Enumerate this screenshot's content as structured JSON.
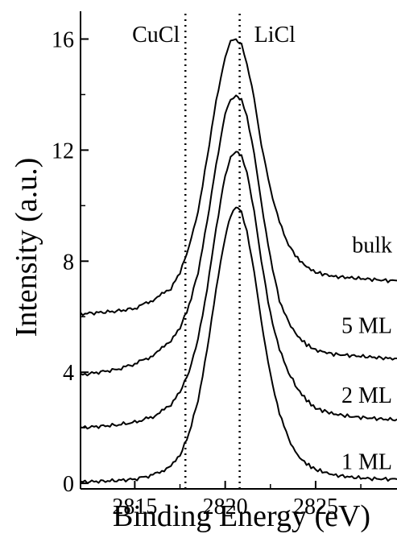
{
  "chart_data": {
    "type": "line",
    "xlabel": "Binding Energy (eV)",
    "ylabel": "Intensity (a.u.)",
    "xlim": [
      2812,
      2829.5
    ],
    "ylim": [
      -0.2,
      17
    ],
    "x_ticks": [
      2815,
      2820,
      2825
    ],
    "y_ticks": [
      0,
      4,
      8,
      12,
      16
    ],
    "grid": false,
    "reference_lines": [
      {
        "label": "CuCl",
        "x": 2817.8
      },
      {
        "label": "LiCl",
        "x": 2820.8
      }
    ],
    "series": [
      {
        "name": "1 ML",
        "label_y": 0.8,
        "x": [
          2812,
          2813,
          2814,
          2815,
          2816,
          2817,
          2817.5,
          2818,
          2818.5,
          2819,
          2819.5,
          2820,
          2820.3,
          2820.6,
          2820.9,
          2821.2,
          2821.6,
          2822,
          2822.5,
          2823,
          2823.5,
          2824,
          2824.5,
          2825,
          2826,
          2827,
          2828,
          2829,
          2829.5
        ],
        "y": [
          0.05,
          0.07,
          0.1,
          0.15,
          0.3,
          0.6,
          1.0,
          1.8,
          3.0,
          4.8,
          7.0,
          8.9,
          9.6,
          10.0,
          9.8,
          9.1,
          7.6,
          5.8,
          3.9,
          2.5,
          1.6,
          1.0,
          0.7,
          0.5,
          0.3,
          0.22,
          0.17,
          0.15,
          0.15
        ]
      },
      {
        "name": "2 ML",
        "label_y": 3.2,
        "x": [
          2812,
          2813,
          2814,
          2815,
          2816,
          2817,
          2817.5,
          2818,
          2818.5,
          2819,
          2819.5,
          2820,
          2820.3,
          2820.6,
          2820.9,
          2821.2,
          2821.6,
          2822,
          2822.5,
          2823,
          2823.5,
          2824,
          2824.5,
          2825,
          2826,
          2827,
          2828,
          2829,
          2829.5
        ],
        "y": [
          2.0,
          2.05,
          2.1,
          2.2,
          2.4,
          2.8,
          3.3,
          4.0,
          5.2,
          7.0,
          9.2,
          11.1,
          11.7,
          12.0,
          11.8,
          11.2,
          9.8,
          8.0,
          6.1,
          4.8,
          4.0,
          3.4,
          3.0,
          2.7,
          2.5,
          2.4,
          2.35,
          2.3,
          2.3
        ]
      },
      {
        "name": "5 ML",
        "label_y": 5.7,
        "x": [
          2812,
          2813,
          2814,
          2815,
          2816,
          2817,
          2817.5,
          2818,
          2818.5,
          2819,
          2819.5,
          2820,
          2820.3,
          2820.6,
          2820.9,
          2821.2,
          2821.6,
          2822,
          2822.5,
          2823,
          2823.5,
          2824,
          2824.5,
          2825,
          2826,
          2827,
          2828,
          2829,
          2829.5
        ],
        "y": [
          3.9,
          4.0,
          4.1,
          4.3,
          4.6,
          5.1,
          5.6,
          6.4,
          7.6,
          9.4,
          11.5,
          13.3,
          13.8,
          14.0,
          13.8,
          13.2,
          11.9,
          10.1,
          8.1,
          6.6,
          5.8,
          5.3,
          5.0,
          4.8,
          4.65,
          4.6,
          4.55,
          4.5,
          4.5
        ]
      },
      {
        "name": "bulk",
        "label_y": 8.6,
        "x": [
          2812,
          2813,
          2814,
          2815,
          2816,
          2817,
          2817.5,
          2818,
          2818.5,
          2819,
          2819.5,
          2820,
          2820.3,
          2820.6,
          2820.9,
          2821.2,
          2821.6,
          2822,
          2822.5,
          2823,
          2823.5,
          2824,
          2824.5,
          2825,
          2826,
          2827,
          2828,
          2829,
          2829.5
        ],
        "y": [
          6.1,
          6.15,
          6.2,
          6.3,
          6.6,
          7.0,
          7.6,
          8.5,
          9.8,
          11.7,
          13.8,
          15.4,
          15.9,
          16.0,
          15.8,
          15.1,
          13.9,
          12.2,
          10.6,
          9.4,
          8.6,
          8.1,
          7.8,
          7.6,
          7.45,
          7.4,
          7.35,
          7.3,
          7.3
        ]
      }
    ]
  }
}
